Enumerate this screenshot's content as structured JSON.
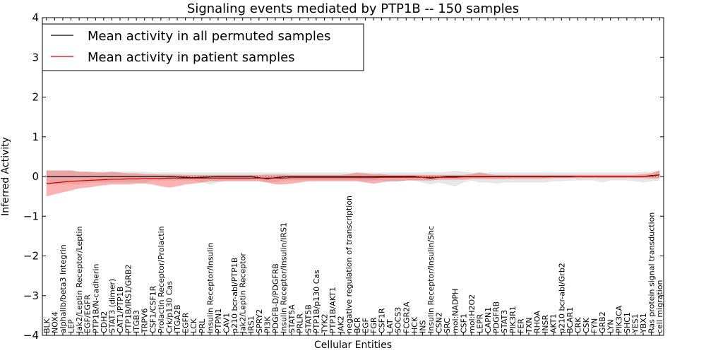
{
  "chart_data": {
    "type": "line",
    "title": "Signaling events mediated by PTP1B -- 150 samples",
    "xlabel": "Cellular Entities",
    "ylabel": "Inferred Activity",
    "ylim": [
      -4,
      4
    ],
    "yticks": [
      -4,
      -3,
      -2,
      -1,
      0,
      1,
      2,
      3,
      4
    ],
    "ytick_labels": [
      "−4",
      "−3",
      "−2",
      "−1",
      "0",
      "1",
      "2",
      "3",
      "4"
    ],
    "legend_position": "top-left",
    "categories": [
      "BLK",
      "NOX4",
      "alphaIIb/beta3 Integrin",
      "LEP",
      "Jak2/Leptin Receptor/Leptin",
      "EGF/EGFR",
      "PTP1B/N-cadherin",
      "CDH2",
      "STAT3 (dimer)",
      "CAT1/PTP1B",
      "PTP1B/IRS1/GRB2",
      "ITGB3",
      "TRPV6",
      "CSF1/CSF1R",
      "Prolactin Receptor/Prolactin",
      "Crk/p130 Cas",
      "ITGA2B",
      "EGFR",
      "LCK",
      "PRL",
      "Insulin Receptor/Insulin",
      "PTPN1",
      "CAV1",
      "p210 bcr-abl/PTP1B",
      "Jak2/Leptin Receptor",
      "IRS1",
      "SPRY2",
      "PI3K",
      "PDGFB-D/PDGFRB",
      "Insulin Receptor/Insulin/IRS1",
      "STAT5A",
      "PRLR",
      "STAT5B",
      "PTP1B/p130 Cas",
      "TYK2",
      "PTP1B/AKT1",
      "JAK2",
      "negative regulation of transcription",
      "BCR",
      "EGF",
      "FGR",
      "CSF1R",
      "LAT",
      "SOCS3",
      "FCGR2A",
      "HCK",
      "INS",
      "Insulin Receptor/Insulin/Shc",
      "CSN2",
      "SRC",
      "mol:NADPH",
      "CSF1",
      "mol:H2O2",
      "LEPR",
      "CAPN1",
      "PDGFRB",
      "STAT3",
      "PIK3R1",
      "FER",
      "TXN",
      "RHOA",
      "INSR",
      "AKT1",
      "p210 bcr-abl/Grb2",
      "BCAR1",
      "CRK",
      "CSK",
      "FYN",
      "GRB2",
      "LYN",
      "PIK3CA",
      "SHC1",
      "YES1",
      "YBX1",
      "Ras protein signal transduction",
      "cell migration"
    ],
    "series": [
      {
        "name": "Mean activity in all permuted samples",
        "color": "#000000",
        "values": [
          0,
          0,
          0,
          0,
          0,
          0,
          0,
          0,
          0,
          0,
          0,
          0,
          0,
          0,
          0,
          0,
          -0.01,
          -0.02,
          -0.03,
          -0.02,
          -0.01,
          0,
          0,
          0,
          0,
          0,
          -0.03,
          -0.06,
          -0.03,
          -0.01,
          0,
          0,
          0,
          0,
          0,
          0,
          0,
          0,
          0,
          0,
          0,
          0,
          0,
          0,
          0,
          0,
          -0.02,
          -0.04,
          -0.02,
          0,
          0,
          0,
          0,
          0,
          0,
          0,
          0,
          0,
          0,
          0,
          0,
          0,
          0,
          0,
          0,
          0,
          0,
          0,
          0,
          0,
          0,
          0,
          0,
          0,
          0.02,
          0.04
        ],
        "band_lower": [
          -0.2,
          -0.2,
          -0.2,
          -0.2,
          -0.2,
          -0.15,
          -0.15,
          -0.15,
          -0.15,
          -0.15,
          -0.15,
          -0.15,
          -0.15,
          -0.1,
          -0.1,
          -0.1,
          -0.1,
          -0.1,
          -0.1,
          -0.15,
          -0.2,
          -0.15,
          -0.1,
          -0.1,
          -0.1,
          -0.1,
          -0.1,
          -0.15,
          -0.15,
          -0.1,
          -0.1,
          -0.1,
          -0.1,
          -0.1,
          -0.1,
          -0.1,
          -0.1,
          -0.1,
          -0.1,
          -0.12,
          -0.1,
          -0.1,
          -0.12,
          -0.12,
          -0.1,
          -0.1,
          -0.15,
          -0.2,
          -0.15,
          -0.2,
          -0.25,
          -0.15,
          -0.1,
          -0.15,
          -0.15,
          -0.18,
          -0.15,
          -0.15,
          -0.15,
          -0.15,
          -0.15,
          -0.15,
          -0.12,
          -0.12,
          -0.1,
          -0.1,
          -0.1,
          -0.1,
          -0.15,
          -0.1,
          -0.1,
          -0.1,
          -0.12,
          -0.15,
          -0.12,
          -0.1
        ],
        "band_upper": [
          0.15,
          0.15,
          0.15,
          0.15,
          0.12,
          0.12,
          0.12,
          0.12,
          0.12,
          0.12,
          0.12,
          0.12,
          0.12,
          0.1,
          0.1,
          0.1,
          0.1,
          0.1,
          0.1,
          0.1,
          0.1,
          0.1,
          0.1,
          0.1,
          0.1,
          0.1,
          0.1,
          0.1,
          0.1,
          0.1,
          0.1,
          0.1,
          0.1,
          0.1,
          0.1,
          0.1,
          0.1,
          0.1,
          0.1,
          0.1,
          0.1,
          0.1,
          0.1,
          0.1,
          0.1,
          0.1,
          0.1,
          0.12,
          0.1,
          0.12,
          0.15,
          0.12,
          0.1,
          0.1,
          0.1,
          0.1,
          0.1,
          0.1,
          0.1,
          0.1,
          0.1,
          0.1,
          0.1,
          0.1,
          0.1,
          0.1,
          0.1,
          0.1,
          0.1,
          0.1,
          0.1,
          0.1,
          0.1,
          0.12,
          0.12,
          0.15
        ]
      },
      {
        "name": "Mean activity in patient samples",
        "color": "#d40000",
        "values": [
          -0.18,
          -0.16,
          -0.14,
          -0.12,
          -0.11,
          -0.1,
          -0.09,
          -0.08,
          -0.07,
          -0.07,
          -0.06,
          -0.06,
          -0.05,
          -0.05,
          -0.05,
          -0.04,
          -0.04,
          -0.04,
          -0.04,
          -0.04,
          -0.04,
          -0.04,
          -0.04,
          -0.04,
          -0.04,
          -0.04,
          -0.04,
          -0.04,
          -0.04,
          -0.04,
          -0.03,
          -0.03,
          -0.03,
          -0.03,
          -0.03,
          -0.03,
          -0.03,
          -0.03,
          -0.03,
          -0.03,
          -0.03,
          -0.02,
          -0.02,
          -0.02,
          -0.02,
          -0.02,
          -0.02,
          -0.02,
          -0.02,
          -0.02,
          -0.02,
          -0.01,
          -0.01,
          -0.01,
          -0.01,
          -0.01,
          -0.01,
          -0.01,
          -0.01,
          -0.01,
          -0.01,
          -0.01,
          -0.01,
          -0.01,
          -0.01,
          0,
          0,
          0,
          0,
          0,
          0,
          0,
          0,
          0,
          0.01,
          0.04
        ],
        "band_lower": [
          -0.5,
          -0.45,
          -0.4,
          -0.35,
          -0.3,
          -0.28,
          -0.25,
          -0.22,
          -0.2,
          -0.2,
          -0.2,
          -0.18,
          -0.18,
          -0.2,
          -0.25,
          -0.28,
          -0.25,
          -0.2,
          -0.18,
          -0.15,
          -0.12,
          -0.12,
          -0.12,
          -0.12,
          -0.12,
          -0.12,
          -0.12,
          -0.15,
          -0.2,
          -0.2,
          -0.18,
          -0.15,
          -0.12,
          -0.12,
          -0.12,
          -0.12,
          -0.12,
          -0.12,
          -0.12,
          -0.15,
          -0.18,
          -0.15,
          -0.12,
          -0.12,
          -0.1,
          -0.1,
          -0.1,
          -0.1,
          -0.08,
          -0.08,
          -0.08,
          -0.08,
          -0.06,
          -0.06,
          -0.06,
          -0.06,
          -0.06,
          -0.05,
          -0.05,
          -0.05,
          -0.05,
          -0.05,
          -0.04,
          -0.04,
          -0.04,
          -0.04,
          -0.04,
          -0.04,
          -0.04,
          -0.04,
          -0.04,
          -0.04,
          -0.04,
          -0.04,
          -0.05,
          -0.05
        ],
        "band_upper": [
          0.15,
          0.15,
          0.15,
          0.15,
          0.12,
          0.12,
          0.1,
          0.1,
          0.12,
          0.1,
          0.08,
          0.08,
          0.06,
          0.06,
          0.05,
          0.05,
          0.05,
          0.04,
          0.04,
          0.04,
          0.04,
          0.04,
          0.04,
          0.04,
          0.04,
          0.04,
          0.04,
          0.05,
          0.05,
          0.05,
          0.04,
          0.04,
          0.04,
          0.04,
          0.04,
          0.04,
          0.04,
          0.06,
          0.1,
          0.08,
          0.06,
          0.06,
          0.04,
          0.04,
          0.04,
          0.04,
          0.04,
          0.04,
          0.04,
          0.04,
          0.04,
          0.04,
          0.06,
          0.1,
          0.06,
          0.04,
          0.04,
          0.04,
          0.04,
          0.04,
          0.04,
          0.04,
          0.04,
          0.04,
          0.04,
          0.04,
          0.04,
          0.04,
          0.04,
          0.04,
          0.04,
          0.04,
          0.04,
          0.06,
          0.08,
          0.15
        ]
      }
    ]
  }
}
